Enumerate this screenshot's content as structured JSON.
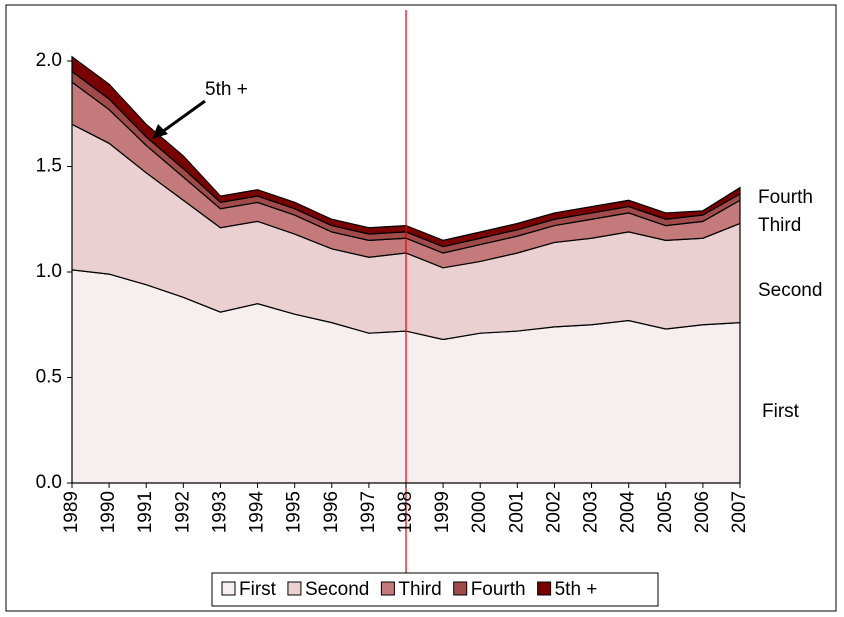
{
  "chart_data": {
    "type": "stacked-area",
    "categories": [
      "1989",
      "1990",
      "1991",
      "1992",
      "1993",
      "1994",
      "1995",
      "1996",
      "1997",
      "1998",
      "1999",
      "2000",
      "2001",
      "2002",
      "2003",
      "2004",
      "2005",
      "2006",
      "2007"
    ],
    "series": [
      {
        "name": "First",
        "color": "#f7efef",
        "values": [
          1.01,
          0.99,
          0.94,
          0.88,
          0.81,
          0.85,
          0.8,
          0.76,
          0.71,
          0.72,
          0.68,
          0.71,
          0.72,
          0.74,
          0.75,
          0.77,
          0.73,
          0.75,
          0.76
        ]
      },
      {
        "name": "Second",
        "color": "#ead0d0",
        "values": [
          0.69,
          0.62,
          0.53,
          0.46,
          0.4,
          0.39,
          0.38,
          0.35,
          0.36,
          0.37,
          0.34,
          0.34,
          0.37,
          0.4,
          0.41,
          0.42,
          0.42,
          0.41,
          0.47
        ]
      },
      {
        "name": "Third",
        "color": "#c47a7a",
        "values": [
          0.2,
          0.16,
          0.13,
          0.11,
          0.09,
          0.09,
          0.09,
          0.08,
          0.08,
          0.07,
          0.07,
          0.08,
          0.08,
          0.08,
          0.09,
          0.09,
          0.07,
          0.08,
          0.11
        ]
      },
      {
        "name": "Fourth",
        "color": "#a04a4a",
        "values": [
          0.05,
          0.05,
          0.04,
          0.04,
          0.03,
          0.03,
          0.03,
          0.03,
          0.03,
          0.03,
          0.03,
          0.03,
          0.03,
          0.03,
          0.03,
          0.03,
          0.03,
          0.03,
          0.03
        ]
      },
      {
        "name": "5th +",
        "color": "#7a0000",
        "values": [
          0.07,
          0.07,
          0.06,
          0.06,
          0.03,
          0.03,
          0.03,
          0.03,
          0.03,
          0.03,
          0.03,
          0.03,
          0.03,
          0.03,
          0.03,
          0.03,
          0.03,
          0.02,
          0.03
        ]
      }
    ],
    "ylim": [
      0,
      2
    ],
    "yticks": [
      {
        "value": 0,
        "label": "0.0"
      },
      0.5,
      {
        "value": 1,
        "label": "1.0"
      },
      1.5,
      {
        "value": 2,
        "label": "2.0"
      }
    ],
    "annotations": [
      "5th +",
      "Fourth",
      "Third",
      "Second",
      "First"
    ],
    "legend": "bottom"
  }
}
